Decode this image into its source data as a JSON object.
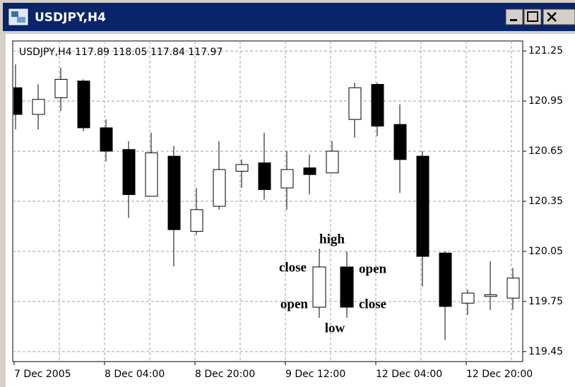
{
  "window": {
    "title": "USDJPY,H4"
  },
  "chart_data": {
    "type": "candlestick",
    "symbol_info": "USDJPY,H4  117.89 118.05 117.84 117.97",
    "categories": [
      "7 Dec 2005",
      null,
      null,
      null,
      "8 Dec 04:00",
      null,
      null,
      null,
      "8 Dec 20:00",
      null,
      null,
      null,
      "9 Dec 12:00",
      null,
      null,
      null,
      "12 Dec 04:00",
      null,
      null,
      null,
      "12 Dec 20:00",
      null,
      null
    ],
    "open": [
      121.03,
      120.87,
      120.97,
      121.07,
      120.79,
      120.66,
      120.38,
      120.62,
      120.17,
      120.32,
      120.53,
      120.58,
      120.43,
      120.55,
      120.52,
      120.84,
      121.05,
      120.81,
      120.62,
      120.04,
      119.74,
      119.78,
      119.77
    ],
    "high": [
      121.17,
      121.05,
      121.15,
      121.08,
      120.84,
      120.71,
      120.76,
      120.68,
      120.43,
      120.71,
      120.6,
      120.76,
      120.65,
      120.63,
      120.71,
      121.06,
      121.06,
      120.93,
      120.65,
      120.05,
      119.82,
      119.99,
      119.95
    ],
    "low": [
      120.78,
      120.78,
      120.89,
      120.77,
      120.59,
      120.25,
      120.38,
      119.96,
      120.15,
      120.3,
      120.43,
      120.36,
      120.3,
      120.39,
      120.52,
      120.73,
      120.74,
      120.4,
      119.84,
      119.52,
      119.67,
      119.7,
      119.7
    ],
    "close": [
      120.87,
      120.96,
      121.08,
      120.79,
      120.65,
      120.39,
      120.64,
      120.18,
      120.3,
      120.54,
      120.57,
      120.42,
      120.54,
      120.51,
      120.65,
      121.03,
      120.8,
      120.6,
      120.02,
      119.72,
      119.8,
      119.79,
      119.89
    ],
    "up_color": "#ffffff",
    "down_color": "#000000",
    "ylim": [
      119.39,
      121.31
    ],
    "yticks": [
      121.25,
      120.95,
      120.65,
      120.35,
      120.05,
      119.75,
      119.45
    ],
    "grid": true,
    "annotations": [
      "high",
      "close",
      "open",
      "low",
      "open",
      "close"
    ]
  }
}
